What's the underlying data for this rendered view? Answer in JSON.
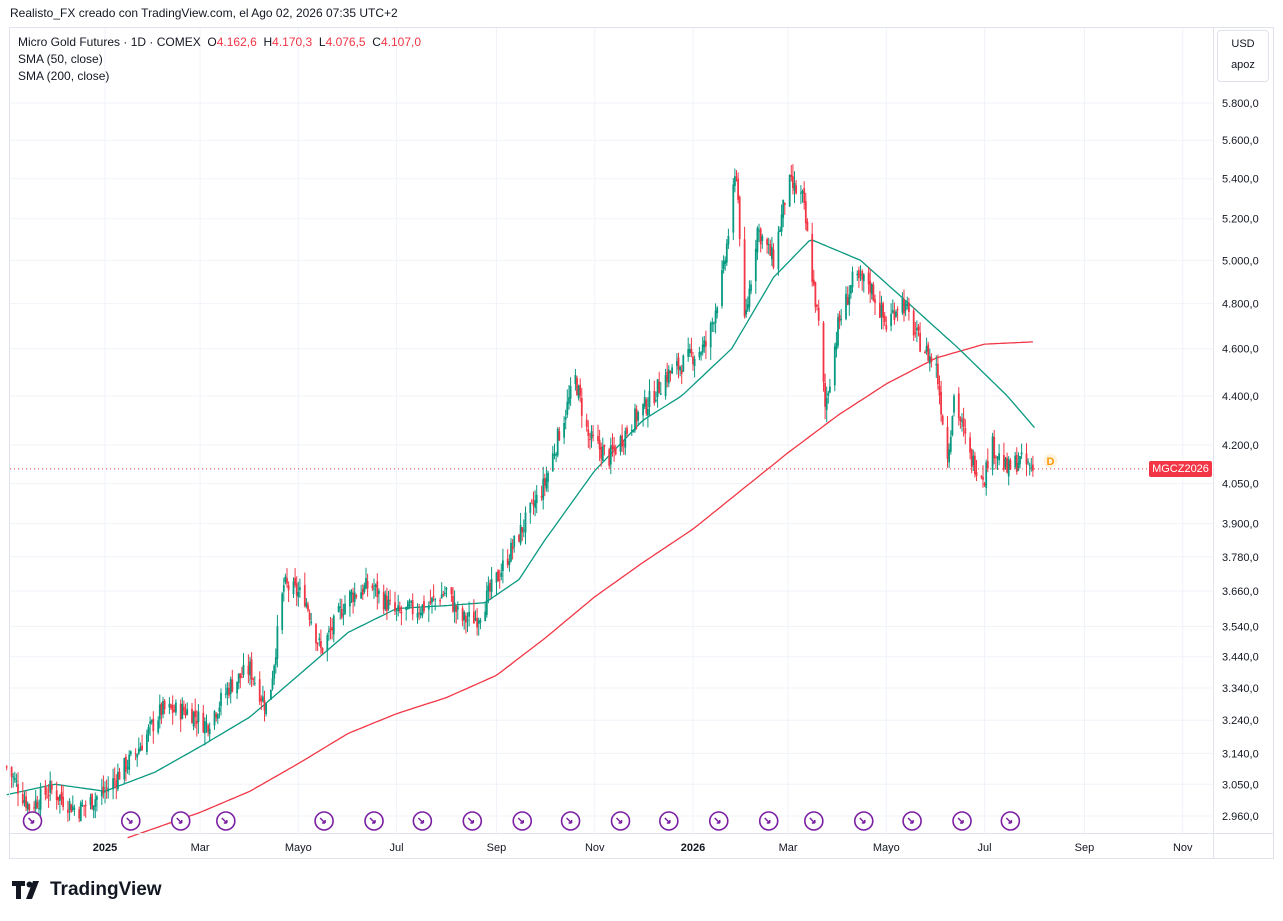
{
  "attribution": "Realisto_FX creado con TradingView.com, el Ago 02, 2026 07:35 UTC+2",
  "legend": {
    "symbol": "Micro Gold Futures · 1D · COMEX",
    "o_label": "O",
    "o_value": "4.162,6",
    "h_label": "H",
    "h_value": "4.170,3",
    "l_label": "L",
    "l_value": "4.076,5",
    "c_label": "C",
    "c_value": "4.107,0",
    "sma50": "SMA (50, close)",
    "sma200": "SMA (200, close)"
  },
  "axis_box": {
    "currency": "USD",
    "mode": "apoz"
  },
  "price_tag": "MGCZ2026",
  "dividend_marker": "D",
  "brand": "TradingView",
  "colors": {
    "up": "#089981",
    "down": "#f23645",
    "sma50": "#089981",
    "sma200": "#f23645",
    "event_marker": "#7b1fa2"
  },
  "chart_data": {
    "type": "candlestick",
    "price_scale": "log",
    "ylim": [
      2900,
      5900
    ],
    "y_ticks": [
      "5.800,0",
      "5.600,0",
      "5.400,0",
      "5.200,0",
      "5.000,0",
      "4.800,0",
      "4.600,0",
      "4.400,0",
      "4.200,0",
      "4.050,0",
      "3.900,0",
      "3.780,0",
      "3.660,0",
      "3.540,0",
      "3.440,0",
      "3.340,0",
      "3.240,0",
      "3.140,0",
      "3.050,0",
      "2.960,0"
    ],
    "y_tick_values": [
      5800,
      5600,
      5400,
      5200,
      5000,
      4800,
      4600,
      4400,
      4200,
      4050,
      3900,
      3780,
      3660,
      3540,
      3440,
      3340,
      3240,
      3140,
      3050,
      2960
    ],
    "x_ticks": [
      {
        "label": "2025",
        "date": "2025-01-01",
        "bold": true
      },
      {
        "label": "Mar",
        "date": "2025-03-01"
      },
      {
        "label": "Mayo",
        "date": "2025-05-01"
      },
      {
        "label": "Jul",
        "date": "2025-07-01"
      },
      {
        "label": "Sep",
        "date": "2025-09-01"
      },
      {
        "label": "Nov",
        "date": "2025-11-01"
      },
      {
        "label": "2026",
        "date": "2026-01-01",
        "bold": true
      },
      {
        "label": "Mar",
        "date": "2026-03-01"
      },
      {
        "label": "Mayo",
        "date": "2026-05-01"
      },
      {
        "label": "Jul",
        "date": "2026-07-01"
      },
      {
        "label": "Sep",
        "date": "2026-09-01"
      },
      {
        "label": "Nov",
        "date": "2026-11-01"
      }
    ],
    "last_price": 4107,
    "price_anchors": [
      {
        "date": "2024-11-01",
        "price": 3100
      },
      {
        "date": "2024-11-15",
        "price": 2985
      },
      {
        "date": "2024-11-28",
        "price": 3035
      },
      {
        "date": "2024-12-15",
        "price": 2975
      },
      {
        "date": "2025-01-01",
        "price": 3030
      },
      {
        "date": "2025-01-20",
        "price": 3140
      },
      {
        "date": "2025-02-05",
        "price": 3270
      },
      {
        "date": "2025-02-22",
        "price": 3270
      },
      {
        "date": "2025-03-05",
        "price": 3225
      },
      {
        "date": "2025-03-20",
        "price": 3350
      },
      {
        "date": "2025-04-01",
        "price": 3400
      },
      {
        "date": "2025-04-12",
        "price": 3270
      },
      {
        "date": "2025-04-22",
        "price": 3680
      },
      {
        "date": "2025-05-05",
        "price": 3640
      },
      {
        "date": "2025-05-15",
        "price": 3460
      },
      {
        "date": "2025-06-01",
        "price": 3640
      },
      {
        "date": "2025-06-15",
        "price": 3680
      },
      {
        "date": "2025-07-01",
        "price": 3580
      },
      {
        "date": "2025-07-20",
        "price": 3610
      },
      {
        "date": "2025-08-01",
        "price": 3660
      },
      {
        "date": "2025-08-10",
        "price": 3560
      },
      {
        "date": "2025-08-20",
        "price": 3570
      },
      {
        "date": "2025-09-01",
        "price": 3700
      },
      {
        "date": "2025-09-15",
        "price": 3860
      },
      {
        "date": "2025-10-01",
        "price": 4050
      },
      {
        "date": "2025-10-10",
        "price": 4250
      },
      {
        "date": "2025-10-20",
        "price": 4470
      },
      {
        "date": "2025-10-28",
        "price": 4230
      },
      {
        "date": "2025-11-10",
        "price": 4150
      },
      {
        "date": "2025-11-25",
        "price": 4300
      },
      {
        "date": "2025-12-05",
        "price": 4380
      },
      {
        "date": "2025-12-15",
        "price": 4480
      },
      {
        "date": "2025-12-28",
        "price": 4550
      },
      {
        "date": "2026-01-10",
        "price": 4620
      },
      {
        "date": "2026-01-20",
        "price": 4950
      },
      {
        "date": "2026-01-28",
        "price": 5450
      },
      {
        "date": "2026-02-02",
        "price": 4700
      },
      {
        "date": "2026-02-10",
        "price": 5150
      },
      {
        "date": "2026-02-20",
        "price": 5000
      },
      {
        "date": "2026-03-01",
        "price": 5380
      },
      {
        "date": "2026-03-10",
        "price": 5300
      },
      {
        "date": "2026-03-20",
        "price": 4700
      },
      {
        "date": "2026-03-24",
        "price": 4350
      },
      {
        "date": "2026-04-01",
        "price": 4700
      },
      {
        "date": "2026-04-10",
        "price": 4900
      },
      {
        "date": "2026-04-20",
        "price": 4900
      },
      {
        "date": "2026-05-01",
        "price": 4700
      },
      {
        "date": "2026-05-10",
        "price": 4830
      },
      {
        "date": "2026-05-20",
        "price": 4650
      },
      {
        "date": "2026-06-01",
        "price": 4520
      },
      {
        "date": "2026-06-08",
        "price": 4150
      },
      {
        "date": "2026-06-12",
        "price": 4400
      },
      {
        "date": "2026-06-22",
        "price": 4150
      },
      {
        "date": "2026-07-01",
        "price": 4080
      },
      {
        "date": "2026-07-05",
        "price": 4210
      },
      {
        "date": "2026-07-15",
        "price": 4100
      },
      {
        "date": "2026-07-22",
        "price": 4140
      },
      {
        "date": "2026-07-31",
        "price": 4107
      }
    ],
    "sma50_anchors": [
      {
        "date": "2024-11-01",
        "price": 3020
      },
      {
        "date": "2024-12-01",
        "price": 3050
      },
      {
        "date": "2025-01-01",
        "price": 3030
      },
      {
        "date": "2025-02-01",
        "price": 3085
      },
      {
        "date": "2025-03-01",
        "price": 3160
      },
      {
        "date": "2025-04-01",
        "price": 3250
      },
      {
        "date": "2025-05-01",
        "price": 3380
      },
      {
        "date": "2025-06-01",
        "price": 3520
      },
      {
        "date": "2025-07-01",
        "price": 3600
      },
      {
        "date": "2025-08-01",
        "price": 3610
      },
      {
        "date": "2025-08-25",
        "price": 3620
      },
      {
        "date": "2025-09-15",
        "price": 3700
      },
      {
        "date": "2025-10-01",
        "price": 3840
      },
      {
        "date": "2025-11-01",
        "price": 4100
      },
      {
        "date": "2025-12-01",
        "price": 4300
      },
      {
        "date": "2025-12-25",
        "price": 4400
      },
      {
        "date": "2026-01-25",
        "price": 4600
      },
      {
        "date": "2026-02-20",
        "price": 4920
      },
      {
        "date": "2026-03-15",
        "price": 5100
      },
      {
        "date": "2026-04-15",
        "price": 5000
      },
      {
        "date": "2026-05-15",
        "price": 4800
      },
      {
        "date": "2026-06-15",
        "price": 4600
      },
      {
        "date": "2026-07-15",
        "price": 4400
      },
      {
        "date": "2026-08-01",
        "price": 4270
      }
    ],
    "sma200_anchors": [
      {
        "date": "2025-01-15",
        "price": 2900
      },
      {
        "date": "2025-03-01",
        "price": 2970
      },
      {
        "date": "2025-04-01",
        "price": 3030
      },
      {
        "date": "2025-05-01",
        "price": 3110
      },
      {
        "date": "2025-06-01",
        "price": 3200
      },
      {
        "date": "2025-07-01",
        "price": 3260
      },
      {
        "date": "2025-08-01",
        "price": 3310
      },
      {
        "date": "2025-09-01",
        "price": 3380
      },
      {
        "date": "2025-10-01",
        "price": 3500
      },
      {
        "date": "2025-11-01",
        "price": 3640
      },
      {
        "date": "2025-12-01",
        "price": 3760
      },
      {
        "date": "2026-01-01",
        "price": 3880
      },
      {
        "date": "2026-02-01",
        "price": 4030
      },
      {
        "date": "2026-03-01",
        "price": 4170
      },
      {
        "date": "2026-04-01",
        "price": 4320
      },
      {
        "date": "2026-05-01",
        "price": 4450
      },
      {
        "date": "2026-06-01",
        "price": 4560
      },
      {
        "date": "2026-07-01",
        "price": 4620
      },
      {
        "date": "2026-08-01",
        "price": 4630
      }
    ],
    "event_markers": [
      "2024-11-17",
      "2025-01-17",
      "2025-02-17",
      "2025-03-17",
      "2025-05-17",
      "2025-06-17",
      "2025-07-17",
      "2025-08-17",
      "2025-09-17",
      "2025-10-17",
      "2025-11-17",
      "2025-12-17",
      "2026-01-17",
      "2026-02-17",
      "2026-03-17",
      "2026-04-17",
      "2026-05-17",
      "2026-06-17",
      "2026-07-17"
    ],
    "dividend_date": "2026-08-01"
  }
}
